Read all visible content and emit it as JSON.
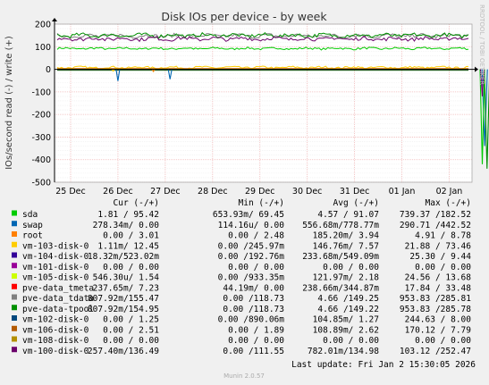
{
  "chart_data": {
    "type": "line",
    "title": "Disk IOs per device - by week",
    "ylabel": "IOs/second read (-) / write (+)",
    "xlabel": "",
    "ylim": [
      -500,
      200
    ],
    "yticks": [
      200,
      100,
      0,
      -100,
      -200,
      -300,
      -400,
      -500
    ],
    "x_ticks": [
      "25 Dec",
      "26 Dec",
      "27 Dec",
      "28 Dec",
      "29 Dec",
      "30 Dec",
      "31 Dec",
      "01 Jan",
      "02 Jan"
    ],
    "grid": true,
    "series": [
      {
        "name": "sda",
        "color": "#00cc00",
        "cur": "1.81 / 95.42",
        "min": "653.93m/ 69.45",
        "avg": "4.57 / 91.07",
        "max": "739.37 /182.52",
        "approx_read": -2,
        "approx_write": 92
      },
      {
        "name": "swap",
        "color": "#0066b3",
        "cur": "278.34m/ 0.00",
        "min": "114.16u/ 0.00",
        "avg": "556.68m/778.77m",
        "max": "290.71 /442.52",
        "approx_read": -1,
        "approx_write": 0
      },
      {
        "name": "root",
        "color": "#ff8000",
        "cur": "0.00 / 3.01",
        "min": "0.00 / 2.48",
        "avg": "185.20m/ 3.94",
        "max": "4.91 / 8.78",
        "approx_read": 0,
        "approx_write": 3
      },
      {
        "name": "vm-103-disk-0",
        "color": "#ffcc00",
        "cur": "1.11m/ 12.45",
        "min": "0.00 /245.97m",
        "avg": "146.76m/ 7.57",
        "max": "21.88 / 73.46",
        "approx_read": 0,
        "approx_write": 8
      },
      {
        "name": "vm-104-disk-0",
        "color": "#330099",
        "cur": "18.32m/523.02m",
        "min": "0.00 /192.76m",
        "avg": "233.68m/549.09m",
        "max": "25.30 / 9.44",
        "approx_read": 0,
        "approx_write": 1
      },
      {
        "name": "vm-101-disk-0",
        "color": "#990099",
        "cur": "0.00 / 0.00",
        "min": "0.00 / 0.00",
        "avg": "0.00 / 0.00",
        "max": "0.00 / 0.00",
        "approx_read": 0,
        "approx_write": 0
      },
      {
        "name": "vm-105-disk-0",
        "color": "#ccff00",
        "cur": "546.30u/ 1.54",
        "min": "0.00 /933.35m",
        "avg": "121.97m/ 2.18",
        "max": "24.56 / 13.68",
        "approx_read": 0,
        "approx_write": 2
      },
      {
        "name": "pve-data_tmeta",
        "color": "#ff0000",
        "cur": "237.65m/ 7.23",
        "min": "44.19m/ 0.00",
        "avg": "238.66m/344.87m",
        "max": "17.84 / 33.48",
        "approx_read": 0,
        "approx_write": 1
      },
      {
        "name": "pve-data_tdata",
        "color": "#808080",
        "cur": "807.92m/155.47",
        "min": "0.00 /118.73",
        "avg": "4.66 /149.25",
        "max": "953.83 /285.81",
        "approx_read": -4,
        "approx_write": 148
      },
      {
        "name": "pve-data-tpool",
        "color": "#008f00",
        "cur": "807.92m/154.95",
        "min": "0.00 /118.73",
        "avg": "4.66 /149.22",
        "max": "953.83 /285.78",
        "approx_read": -4,
        "approx_write": 150
      },
      {
        "name": "vm-102-disk-0",
        "color": "#00487d",
        "cur": "0.00 / 1.25",
        "min": "0.00 /890.06m",
        "avg": "104.85m/ 1.27",
        "max": "244.63 / 8.00",
        "approx_read": 0,
        "approx_write": 1
      },
      {
        "name": "vm-106-disk-0",
        "color": "#b35a00",
        "cur": "0.00 / 2.51",
        "min": "0.00 / 1.89",
        "avg": "108.89m/ 2.62",
        "max": "170.12 / 7.79",
        "approx_read": 0,
        "approx_write": 2
      },
      {
        "name": "vm-108-disk-0",
        "color": "#b38f00",
        "cur": "0.00 / 0.00",
        "min": "0.00 / 0.00",
        "avg": "0.00 / 0.00",
        "max": "0.00 / 0.00",
        "approx_read": 0,
        "approx_write": 0
      },
      {
        "name": "vm-100-disk-0",
        "color": "#6b006b",
        "cur": "257.40m/136.49",
        "min": "0.00 /111.55",
        "avg": "782.01m/134.98",
        "max": "103.12 /252.47",
        "approx_read": -1,
        "approx_write": 135
      }
    ]
  },
  "legend_headers": {
    "cur": "Cur (-/+)",
    "min": "Min (-/+)",
    "avg": "Avg (-/+)",
    "max": "Max (-/+)"
  },
  "last_update": "Last update: Fri Jan  2 15:30:05 2026",
  "side_label": "RRDTOOL / TOBI OETIKER",
  "footer": "Munin 2.0.57"
}
